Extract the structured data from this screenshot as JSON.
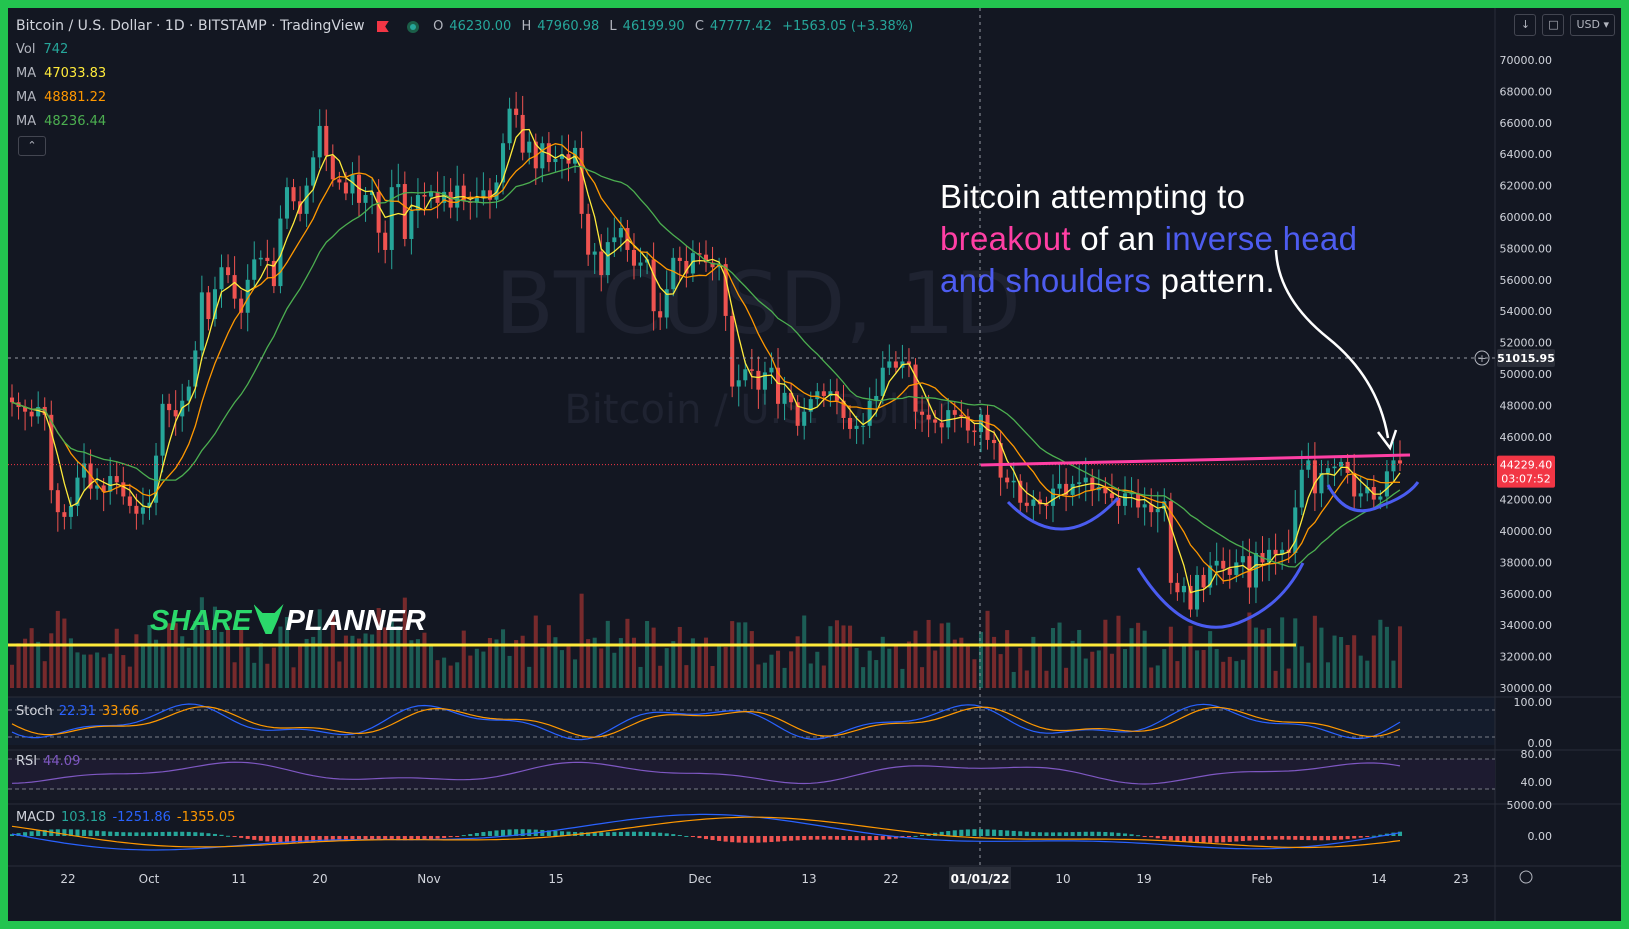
{
  "header": {
    "title": "Bitcoin / U.S. Dollar · 1D · BITSTAMP · TradingView",
    "ohlc": [
      {
        "label": "O",
        "value": "46230.00"
      },
      {
        "label": "H",
        "value": "47960.98"
      },
      {
        "label": "L",
        "value": "46199.90"
      },
      {
        "label": "C",
        "value": "47777.42"
      }
    ],
    "change": "+1563.05 (+3.38%)",
    "currency": "USD",
    "collapse_icon": "chevron-up-icon"
  },
  "indicators": [
    {
      "name": "Vol",
      "value": "742",
      "color": "#26a69a"
    },
    {
      "name": "MA",
      "value": "47033.83",
      "color": "#ffeb3b"
    },
    {
      "name": "MA",
      "value": "48881.22",
      "color": "#ff9800"
    },
    {
      "name": "MA",
      "value": "48236.44",
      "color": "#4caf50"
    }
  ],
  "watermark": {
    "symbol": "BTCUSD, 1D",
    "name": "Bitcoin / U.S. Dollar"
  },
  "annotation": {
    "segments": [
      {
        "text": "Bitcoin attempting to",
        "color": "#ffffff",
        "br": true
      },
      {
        "text": "breakout",
        "color": "#ff3fa4",
        "br": false
      },
      {
        "text": " of an ",
        "color": "#ffffff",
        "br": false
      },
      {
        "text": "inverse head",
        "color": "#4d5cf0",
        "br": true
      },
      {
        "text": "and shoulders",
        "color": "#4d5cf0",
        "br": false
      },
      {
        "text": " pattern.",
        "color": "#ffffff",
        "br": false
      }
    ]
  },
  "brand": {
    "left": "SHARE",
    "right": "PLANNER"
  },
  "panes": {
    "stoch": {
      "name": "Stoch",
      "k": "22.31",
      "d": "33.66",
      "k_color": "#2962ff",
      "d_color": "#ff9800",
      "levels": [
        "100.00",
        "0.00"
      ]
    },
    "rsi": {
      "name": "RSI",
      "value": "44.09",
      "color": "#7e57c2",
      "levels": [
        "80.00",
        "40.00"
      ]
    },
    "macd": {
      "name": "MACD",
      "hist": "103.18",
      "macd": "-1251.86",
      "signal": "-1355.05",
      "levels": [
        "5000.00",
        "0.00"
      ]
    }
  },
  "chart_data": {
    "type": "candlestick",
    "title": "Bitcoin / U.S. Dollar · 1D · BITSTAMP · TradingView",
    "y_axis_ticks": [
      30000,
      32000,
      34000,
      36000,
      38000,
      40000,
      42000,
      44000,
      46000,
      48000,
      50000,
      52000,
      54000,
      56000,
      58000,
      60000,
      62000,
      64000,
      66000,
      68000,
      70000
    ],
    "y_axis_labels": [
      "30000.00",
      "32000.00",
      "34000.00",
      "36000.00",
      "38000.00",
      "40000.00",
      "42000.00",
      "44000.00",
      "46000.00",
      "48000.00",
      "50000.00",
      "52000.00",
      "54000.00",
      "56000.00",
      "58000.00",
      "60000.00",
      "62000.00",
      "64000.00",
      "66000.00",
      "68000.00",
      "70000.00"
    ],
    "x_axis_labels": [
      "22",
      "Oct",
      "11",
      "20",
      "Nov",
      "15",
      "Dec",
      "13",
      "22",
      "01/01/22",
      "10",
      "19",
      "Feb",
      "14",
      "23"
    ],
    "last_price": {
      "value": "44229.40",
      "countdown": "03:07:52",
      "color": "#f23645"
    },
    "crosshair_price": {
      "value": "51015.95"
    },
    "crosshair_date": "01/01/22",
    "price_closes": [
      48200,
      47900,
      47600,
      47300,
      47900,
      47400,
      42600,
      41200,
      40900,
      41600,
      43400,
      44300,
      42700,
      42900,
      42500,
      43500,
      43100,
      42200,
      41600,
      41100,
      41500,
      41800,
      44800,
      48100,
      47700,
      47300,
      48300,
      49200,
      51500,
      55200,
      53500,
      55400,
      56800,
      56300,
      54800,
      53900,
      56000,
      57300,
      57400,
      57200,
      55600,
      59900,
      61900,
      61000,
      60200,
      62000,
      63800,
      65800,
      63900,
      62400,
      62200,
      61500,
      62700,
      60900,
      61400,
      61600,
      59000,
      57900,
      61900,
      62100,
      58600,
      60400,
      61400,
      61300,
      61600,
      60900,
      61600,
      60600,
      62000,
      61000,
      60900,
      61300,
      61700,
      61100,
      62200,
      64700,
      66900,
      66500,
      64100,
      64800,
      63100,
      64700,
      63500,
      63700,
      64000,
      63400,
      64400,
      60200,
      57600,
      57800,
      56300,
      58400,
      58700,
      59300,
      57900,
      56900,
      57100,
      57300,
      54000,
      53600,
      55400,
      57400,
      57200,
      56400,
      57700,
      57600,
      57100,
      56800,
      57000,
      53700,
      49200,
      49600,
      50300,
      50200,
      49000,
      50100,
      50400,
      48100,
      48800,
      48200,
      46700,
      47600,
      48400,
      48900,
      48600,
      48900,
      48300,
      47200,
      46500,
      46700,
      46700,
      48300,
      48600,
      50400,
      50800,
      50400,
      50800,
      50600,
      47600,
      47400,
      47100,
      46900,
      46600,
      47700,
      47400,
      47300,
      46400,
      46300,
      47400,
      45800,
      45600,
      43400,
      43100,
      43200,
      41800,
      41600,
      42000,
      41700,
      41600,
      42700,
      43000,
      42300,
      43000,
      43100,
      43400,
      42600,
      42800,
      42400,
      42100,
      41600,
      42400,
      42400,
      41500,
      41700,
      41200,
      41400,
      41900,
      36700,
      36100,
      36500,
      35000,
      37200,
      36400,
      37800,
      38100,
      37600,
      37200,
      38000,
      38400,
      36400,
      38600,
      38000,
      38800,
      38500,
      38800,
      38600,
      41500,
      43900,
      44500,
      42400,
      43700,
      44000,
      44100,
      44400,
      43700,
      42200,
      42400,
      42800,
      42000,
      42200,
      43800,
      44500,
      44300
    ]
  }
}
